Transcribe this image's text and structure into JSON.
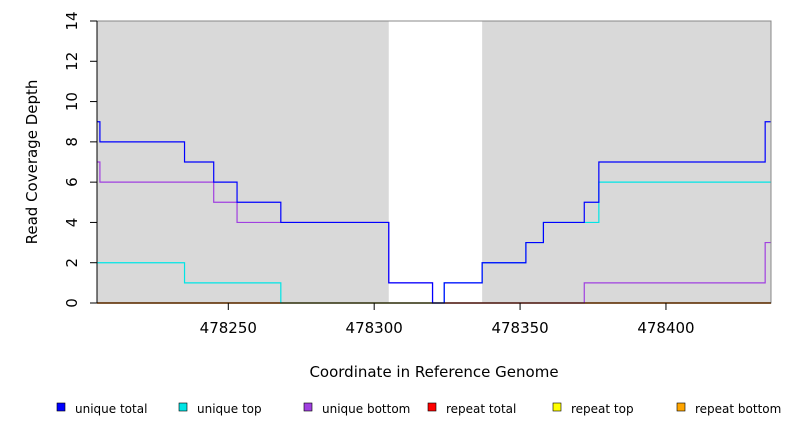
{
  "chart_data": {
    "type": "line",
    "title": "",
    "xlabel": "Coordinate in Reference Genome",
    "ylabel": "Read Coverage Depth",
    "xlim": [
      478205,
      478436
    ],
    "ylim": [
      0,
      14
    ],
    "xticks": [
      478250,
      478300,
      478350,
      478400
    ],
    "yticks": [
      0,
      2,
      4,
      6,
      8,
      10,
      12,
      14
    ],
    "grid": false,
    "step": true,
    "shaded_regions": [
      {
        "x0": 478205,
        "x1": 478305,
        "color": "#d9d9d9"
      },
      {
        "x0": 478337,
        "x1": 478436,
        "color": "#d9d9d9"
      }
    ],
    "series": [
      {
        "name": "unique total",
        "color": "#0000ff",
        "x": [
          478205,
          478206,
          478235,
          478245,
          478253,
          478268,
          478305,
          478320,
          478324,
          478337,
          478352,
          478358,
          478372,
          478377,
          478434,
          478436
        ],
        "y": [
          9,
          8,
          7,
          6,
          5,
          4,
          1,
          0,
          1,
          2,
          3,
          4,
          5,
          7,
          9,
          9
        ]
      },
      {
        "name": "unique top",
        "color": "#00e5e5",
        "x": [
          478205,
          478235,
          478268,
          478324,
          478337,
          478352,
          478358,
          478377,
          478436
        ],
        "y": [
          2,
          1,
          0,
          1,
          2,
          3,
          4,
          6,
          6
        ]
      },
      {
        "name": "unique bottom",
        "color": "#a040e0",
        "x": [
          478205,
          478206,
          478245,
          478253,
          478305,
          478320,
          478372,
          478434,
          478436
        ],
        "y": [
          7,
          6,
          5,
          4,
          1,
          0,
          1,
          3,
          3
        ]
      },
      {
        "name": "repeat total",
        "color": "#ff0000",
        "x": [
          478205,
          478436
        ],
        "y": [
          0,
          0
        ]
      },
      {
        "name": "repeat top",
        "color": "#ffff00",
        "x": [
          478205,
          478436
        ],
        "y": [
          0,
          0
        ]
      },
      {
        "name": "repeat bottom",
        "color": "#ffa500",
        "x": [
          478205,
          478436
        ],
        "y": [
          0,
          0
        ]
      }
    ],
    "legend": {
      "position": "bottom",
      "entries": [
        {
          "label": "unique total",
          "color": "#0000ff"
        },
        {
          "label": "unique top",
          "color": "#00e5e5"
        },
        {
          "label": "unique bottom",
          "color": "#a040e0"
        },
        {
          "label": "repeat total",
          "color": "#ff0000"
        },
        {
          "label": "repeat top",
          "color": "#ffff00"
        },
        {
          "label": "repeat bottom",
          "color": "#ffa500"
        }
      ]
    }
  }
}
